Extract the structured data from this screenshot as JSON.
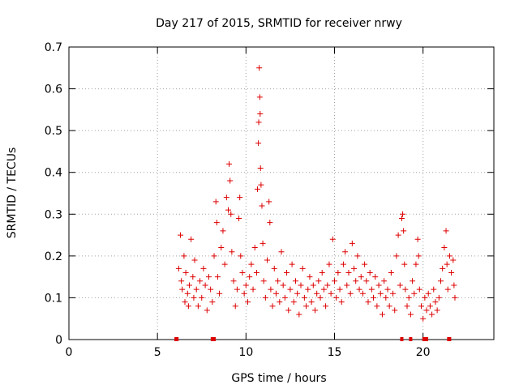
{
  "chart_data": {
    "type": "scatter",
    "title": "Day 217 of 2015, SRMTID for receiver nrwy",
    "xlabel": "GPS time / hours",
    "ylabel": "SRMTID / TECUs",
    "xlim": [
      0,
      24
    ],
    "ylim": [
      0,
      0.7
    ],
    "xticks": [
      0,
      5,
      10,
      15,
      20
    ],
    "yticks": [
      0,
      0.1,
      0.2,
      0.3,
      0.4,
      0.5,
      0.6,
      0.7
    ],
    "xtick_labels": [
      "0",
      "5",
      "10",
      "15",
      "20"
    ],
    "ytick_labels": [
      "0",
      "0.1",
      "0.2",
      "0.3",
      "0.4",
      "0.5",
      "0.6",
      "0.7"
    ],
    "grid": true,
    "marker": "+",
    "marker_color": "#dd0000",
    "series": [
      {
        "name": "SRMTID",
        "points": [
          [
            6.2,
            0.17
          ],
          [
            6.3,
            0.25
          ],
          [
            6.35,
            0.14
          ],
          [
            6.4,
            0.12
          ],
          [
            6.5,
            0.2
          ],
          [
            6.55,
            0.09
          ],
          [
            6.6,
            0.16
          ],
          [
            6.7,
            0.11
          ],
          [
            6.75,
            0.08
          ],
          [
            6.8,
            0.13
          ],
          [
            6.9,
            0.24
          ],
          [
            7.0,
            0.15
          ],
          [
            7.05,
            0.1
          ],
          [
            7.1,
            0.19
          ],
          [
            7.2,
            0.12
          ],
          [
            7.3,
            0.08
          ],
          [
            7.4,
            0.14
          ],
          [
            7.5,
            0.1
          ],
          [
            7.6,
            0.17
          ],
          [
            7.7,
            0.13
          ],
          [
            7.8,
            0.07
          ],
          [
            7.9,
            0.15
          ],
          [
            8.0,
            0.12
          ],
          [
            8.1,
            0.09
          ],
          [
            8.2,
            0.2
          ],
          [
            8.3,
            0.33
          ],
          [
            8.35,
            0.28
          ],
          [
            8.4,
            0.15
          ],
          [
            8.5,
            0.11
          ],
          [
            8.6,
            0.22
          ],
          [
            8.7,
            0.26
          ],
          [
            8.8,
            0.18
          ],
          [
            8.9,
            0.34
          ],
          [
            9.0,
            0.31
          ],
          [
            9.05,
            0.42
          ],
          [
            9.1,
            0.38
          ],
          [
            9.15,
            0.3
          ],
          [
            9.2,
            0.21
          ],
          [
            9.3,
            0.14
          ],
          [
            9.4,
            0.08
          ],
          [
            9.5,
            0.12
          ],
          [
            9.6,
            0.29
          ],
          [
            9.65,
            0.34
          ],
          [
            9.7,
            0.2
          ],
          [
            9.8,
            0.16
          ],
          [
            9.9,
            0.11
          ],
          [
            10.0,
            0.13
          ],
          [
            10.1,
            0.09
          ],
          [
            10.2,
            0.15
          ],
          [
            10.3,
            0.18
          ],
          [
            10.4,
            0.12
          ],
          [
            10.5,
            0.22
          ],
          [
            10.6,
            0.16
          ],
          [
            10.65,
            0.36
          ],
          [
            10.7,
            0.47
          ],
          [
            10.72,
            0.52
          ],
          [
            10.75,
            0.65
          ],
          [
            10.78,
            0.58
          ],
          [
            10.8,
            0.54
          ],
          [
            10.82,
            0.41
          ],
          [
            10.85,
            0.37
          ],
          [
            10.9,
            0.32
          ],
          [
            10.95,
            0.23
          ],
          [
            11.0,
            0.14
          ],
          [
            11.1,
            0.1
          ],
          [
            11.2,
            0.19
          ],
          [
            11.3,
            0.33
          ],
          [
            11.35,
            0.28
          ],
          [
            11.4,
            0.12
          ],
          [
            11.5,
            0.08
          ],
          [
            11.6,
            0.17
          ],
          [
            11.7,
            0.11
          ],
          [
            11.8,
            0.14
          ],
          [
            11.9,
            0.09
          ],
          [
            12.0,
            0.21
          ],
          [
            12.1,
            0.13
          ],
          [
            12.2,
            0.1
          ],
          [
            12.3,
            0.16
          ],
          [
            12.4,
            0.07
          ],
          [
            12.5,
            0.12
          ],
          [
            12.6,
            0.18
          ],
          [
            12.7,
            0.09
          ],
          [
            12.8,
            0.14
          ],
          [
            12.9,
            0.11
          ],
          [
            13.0,
            0.06
          ],
          [
            13.1,
            0.13
          ],
          [
            13.2,
            0.17
          ],
          [
            13.3,
            0.1
          ],
          [
            13.4,
            0.08
          ],
          [
            13.5,
            0.12
          ],
          [
            13.6,
            0.15
          ],
          [
            13.7,
            0.09
          ],
          [
            13.8,
            0.13
          ],
          [
            13.9,
            0.07
          ],
          [
            14.0,
            0.11
          ],
          [
            14.1,
            0.14
          ],
          [
            14.2,
            0.1
          ],
          [
            14.3,
            0.16
          ],
          [
            14.4,
            0.12
          ],
          [
            14.5,
            0.08
          ],
          [
            14.6,
            0.13
          ],
          [
            14.7,
            0.18
          ],
          [
            14.8,
            0.11
          ],
          [
            14.9,
            0.24
          ],
          [
            15.0,
            0.14
          ],
          [
            15.1,
            0.1
          ],
          [
            15.2,
            0.16
          ],
          [
            15.3,
            0.12
          ],
          [
            15.4,
            0.09
          ],
          [
            15.5,
            0.18
          ],
          [
            15.6,
            0.21
          ],
          [
            15.7,
            0.13
          ],
          [
            15.8,
            0.16
          ],
          [
            15.9,
            0.11
          ],
          [
            16.0,
            0.23
          ],
          [
            16.1,
            0.17
          ],
          [
            16.2,
            0.14
          ],
          [
            16.3,
            0.2
          ],
          [
            16.4,
            0.12
          ],
          [
            16.5,
            0.15
          ],
          [
            16.6,
            0.11
          ],
          [
            16.7,
            0.18
          ],
          [
            16.8,
            0.14
          ],
          [
            16.9,
            0.09
          ],
          [
            17.0,
            0.16
          ],
          [
            17.1,
            0.12
          ],
          [
            17.2,
            0.1
          ],
          [
            17.3,
            0.15
          ],
          [
            17.4,
            0.08
          ],
          [
            17.5,
            0.13
          ],
          [
            17.6,
            0.11
          ],
          [
            17.7,
            0.06
          ],
          [
            17.8,
            0.14
          ],
          [
            17.9,
            0.1
          ],
          [
            18.0,
            0.12
          ],
          [
            18.1,
            0.08
          ],
          [
            18.2,
            0.16
          ],
          [
            18.3,
            0.11
          ],
          [
            18.4,
            0.07
          ],
          [
            18.5,
            0.2
          ],
          [
            18.6,
            0.25
          ],
          [
            18.7,
            0.13
          ],
          [
            18.8,
            0.29
          ],
          [
            18.85,
            0.3
          ],
          [
            18.9,
            0.26
          ],
          [
            18.95,
            0.18
          ],
          [
            19.0,
            0.12
          ],
          [
            19.1,
            0.08
          ],
          [
            19.2,
            0.1
          ],
          [
            19.3,
            0.06
          ],
          [
            19.4,
            0.14
          ],
          [
            19.5,
            0.11
          ],
          [
            19.6,
            0.18
          ],
          [
            19.7,
            0.24
          ],
          [
            19.75,
            0.2
          ],
          [
            19.8,
            0.12
          ],
          [
            19.9,
            0.08
          ],
          [
            20.0,
            0.05
          ],
          [
            20.1,
            0.1
          ],
          [
            20.2,
            0.07
          ],
          [
            20.3,
            0.11
          ],
          [
            20.4,
            0.08
          ],
          [
            20.5,
            0.06
          ],
          [
            20.6,
            0.12
          ],
          [
            20.7,
            0.09
          ],
          [
            20.8,
            0.07
          ],
          [
            20.9,
            0.1
          ],
          [
            21.0,
            0.14
          ],
          [
            21.1,
            0.17
          ],
          [
            21.2,
            0.22
          ],
          [
            21.3,
            0.26
          ],
          [
            21.35,
            0.18
          ],
          [
            21.4,
            0.12
          ],
          [
            21.5,
            0.2
          ],
          [
            21.6,
            0.16
          ],
          [
            21.7,
            0.19
          ],
          [
            21.75,
            0.13
          ],
          [
            21.8,
            0.1
          ]
        ]
      },
      {
        "name": "zero markers",
        "points": [
          [
            6.05,
            0
          ],
          [
            6.1,
            0
          ],
          [
            8.1,
            0
          ],
          [
            8.15,
            0
          ],
          [
            8.2,
            0
          ],
          [
            18.8,
            0
          ],
          [
            19.3,
            0
          ],
          [
            20.05,
            0
          ],
          [
            20.2,
            0
          ],
          [
            21.45,
            0
          ],
          [
            21.5,
            0
          ]
        ]
      }
    ]
  }
}
